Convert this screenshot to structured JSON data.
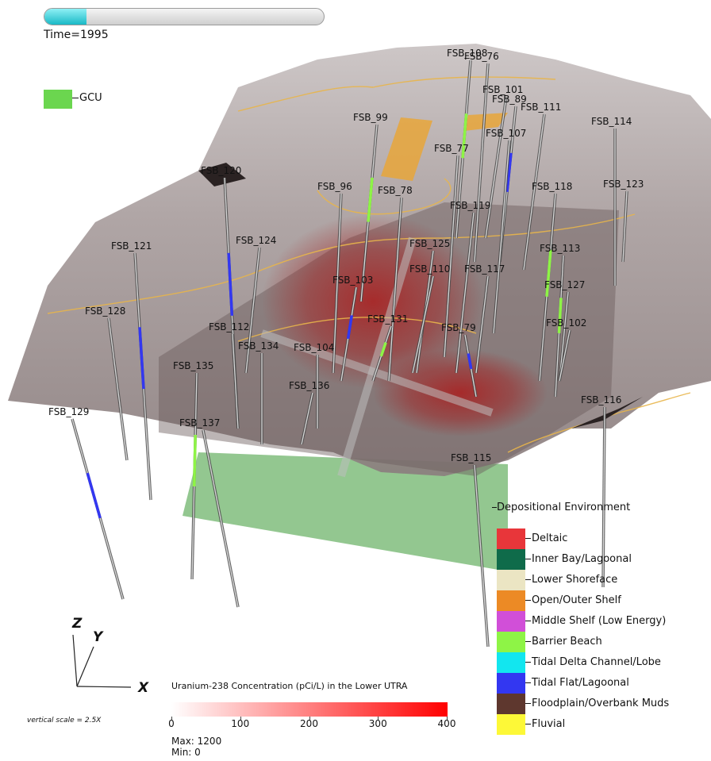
{
  "time": {
    "label": "Time=1995",
    "progress_fraction": 0.15
  },
  "gcu": {
    "label": "GCU",
    "color": "#6bd64f"
  },
  "wells": [
    {
      "name": "FSB_108"
    },
    {
      "name": "FSB_76"
    },
    {
      "name": "FSB_101"
    },
    {
      "name": "FSB_89"
    },
    {
      "name": "FSB_111"
    },
    {
      "name": "FSB_114"
    },
    {
      "name": "FSB_99"
    },
    {
      "name": "FSB_107"
    },
    {
      "name": "FSB_77"
    },
    {
      "name": "FSB_120"
    },
    {
      "name": "FSB_96"
    },
    {
      "name": "FSB_78"
    },
    {
      "name": "FSB_118"
    },
    {
      "name": "FSB_123"
    },
    {
      "name": "FSB_119"
    },
    {
      "name": "FSB_121"
    },
    {
      "name": "FSB_124"
    },
    {
      "name": "FSB_125"
    },
    {
      "name": "FSB_113"
    },
    {
      "name": "FSB_110"
    },
    {
      "name": "FSB_117"
    },
    {
      "name": "FSB_103"
    },
    {
      "name": "FSB_127"
    },
    {
      "name": "FSB_128"
    },
    {
      "name": "FSB_131"
    },
    {
      "name": "FSB_102"
    },
    {
      "name": "FSB_112"
    },
    {
      "name": "FSB_79"
    },
    {
      "name": "FSB_134"
    },
    {
      "name": "FSB_104"
    },
    {
      "name": "FSB_135"
    },
    {
      "name": "FSB_136"
    },
    {
      "name": "FSB_116"
    },
    {
      "name": "FSB_129"
    },
    {
      "name": "FSB_137"
    },
    {
      "name": "FSB_115"
    }
  ],
  "depositional_legend": {
    "title": "Depositional Environment",
    "items": [
      {
        "label": "Deltaic",
        "color": "#e8363a"
      },
      {
        "label": "Inner Bay/Lagoonal",
        "color": "#0f6b4a"
      },
      {
        "label": "Lower Shoreface",
        "color": "#ebe5c3"
      },
      {
        "label": "Open/Outer Shelf",
        "color": "#ec8a25"
      },
      {
        "label": "Middle Shelf (Low Energy)",
        "color": "#d14fd8"
      },
      {
        "label": "Barrier Beach",
        "color": "#8ef446"
      },
      {
        "label": "Tidal Delta Channel/Lobe",
        "color": "#12e6ef"
      },
      {
        "label": "Tidal Flat/Lagoonal",
        "color": "#3337f1"
      },
      {
        "label": "Floodplain/Overbank Muds",
        "color": "#5e372e"
      },
      {
        "label": "Fluvial",
        "color": "#fdf837"
      }
    ]
  },
  "concentration_colorbar": {
    "title": "Uranium-238 Concentration (pCi/L) in the Lower UTRA",
    "ticks": [
      "0",
      "100",
      "200",
      "300",
      "400"
    ],
    "min_color": "#ffffff",
    "max_color": "#ff0000",
    "max_label": "Max:  1200",
    "min_label": "Min:  0"
  },
  "axes": {
    "z": "Z",
    "y": "Y",
    "x": "X"
  },
  "vertical_scale": "vertical scale = 2.5X"
}
